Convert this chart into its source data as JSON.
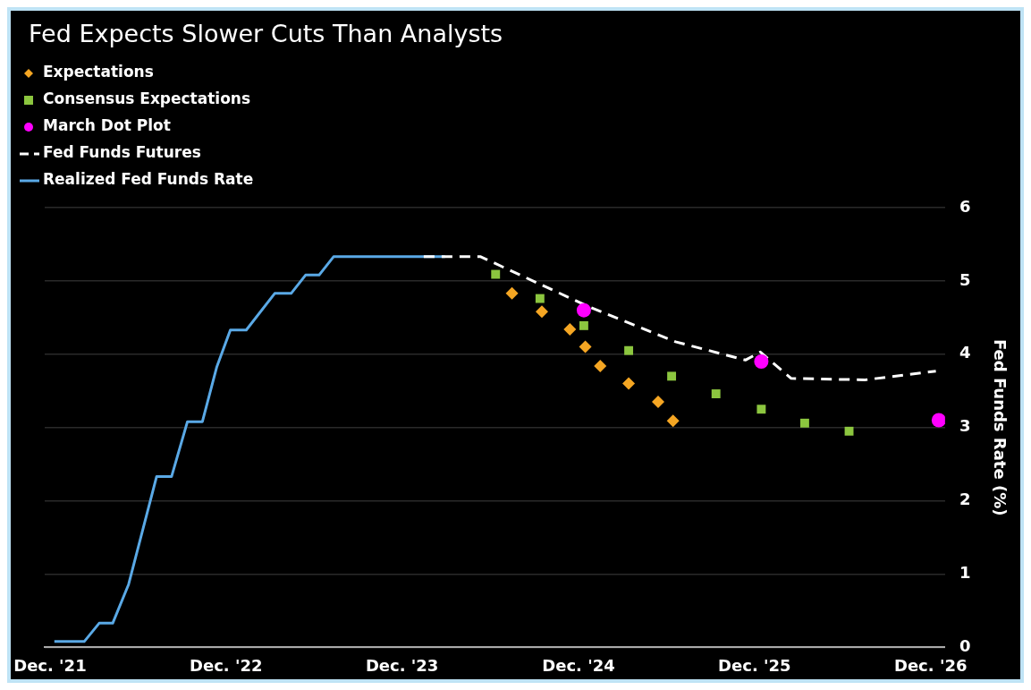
{
  "chart_data": {
    "type": "line",
    "title": "Fed Expects Slower Cuts Than Analysts",
    "ylabel": "Fed Funds Rate (%)",
    "xlim": [
      "2021-11-20",
      "2026-12-31"
    ],
    "xticks": [
      {
        "value": "2021-12-01",
        "label": "Dec. '21"
      },
      {
        "value": "2022-12-01",
        "label": "Dec. '22"
      },
      {
        "value": "2023-12-01",
        "label": "Dec. '23"
      },
      {
        "value": "2024-12-01",
        "label": "Dec. '24"
      },
      {
        "value": "2025-12-01",
        "label": "Dec. '25"
      },
      {
        "value": "2026-12-01",
        "label": "Dec. '26"
      }
    ],
    "ylim": [
      0,
      6
    ],
    "yticks": [
      0,
      1,
      2,
      3,
      4,
      5,
      6
    ],
    "grid": "y",
    "legend": "top left",
    "series": [
      {
        "name": "Expectations",
        "type": "scatter",
        "marker": "diamond",
        "color": "#f5a623",
        "x": [
          "2024-07-16",
          "2024-09-16",
          "2024-11-13",
          "2024-12-15",
          "2025-01-15",
          "2025-03-15",
          "2025-05-15",
          "2025-06-15"
        ],
        "values": [
          4.83,
          4.58,
          4.34,
          4.1,
          3.84,
          3.6,
          3.35,
          3.09
        ]
      },
      {
        "name": "Consensus Expectations",
        "type": "scatter",
        "marker": "square",
        "color": "#8cc63f",
        "x": [
          "2024-06-12",
          "2024-09-12",
          "2024-12-12",
          "2025-03-15",
          "2025-06-12",
          "2025-09-12",
          "2025-12-15",
          "2026-03-15",
          "2026-06-15"
        ],
        "values": [
          5.09,
          4.76,
          4.39,
          4.05,
          3.7,
          3.46,
          3.25,
          3.06,
          2.95
        ]
      },
      {
        "name": "March Dot Plot",
        "type": "scatter",
        "marker": "circle",
        "color": "#ff00ff",
        "x": [
          "2024-12-12",
          "2025-12-15",
          "2026-12-18"
        ],
        "values": [
          4.6,
          3.9,
          3.1
        ]
      },
      {
        "name": "Fed Funds Futures",
        "marker": "none",
        "line_style": "dashed",
        "color": "#ffffff",
        "x": [
          "2024-01-15",
          "2024-05-12",
          "2024-12-25",
          "2025-06-20",
          "2025-11-12",
          "2025-12-13",
          "2026-02-15",
          "2026-07-18",
          "2026-12-12"
        ],
        "values": [
          5.33,
          5.33,
          4.64,
          4.17,
          3.92,
          4.03,
          3.67,
          3.65,
          3.77
        ]
      },
      {
        "name": "Realized Fed Funds Rate",
        "marker": "none",
        "line_style": "solid",
        "color": "#5aa9e6",
        "x": [
          "2021-12-10",
          "2022-02-10",
          "2022-03-13",
          "2022-04-10",
          "2022-05-13",
          "2022-07-10",
          "2022-08-10",
          "2022-09-12",
          "2022-10-13",
          "2022-11-12",
          "2022-12-10",
          "2023-01-12",
          "2023-03-12",
          "2023-04-15",
          "2023-05-15",
          "2023-06-12",
          "2023-07-12",
          "2024-02-28"
        ],
        "values": [
          0.08,
          0.08,
          0.33,
          0.33,
          0.86,
          2.33,
          2.33,
          3.08,
          3.08,
          3.83,
          4.33,
          4.33,
          4.83,
          4.83,
          5.08,
          5.08,
          5.33,
          5.33
        ]
      }
    ]
  }
}
